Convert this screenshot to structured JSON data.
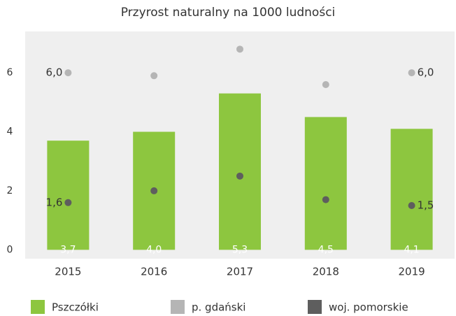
{
  "chart_data": {
    "type": "bar-line",
    "title": "Przyrost naturalny na 1000 ludności",
    "categories": [
      "2015",
      "2016",
      "2017",
      "2018",
      "2019"
    ],
    "series": [
      {
        "name": "Pszczółki",
        "type": "bar",
        "color": "#8dc63f",
        "values": [
          3.7,
          4.0,
          5.3,
          4.5,
          4.1
        ],
        "value_labels": [
          "3,7",
          "4,0",
          "5,3",
          "4,5",
          "4,1"
        ]
      },
      {
        "name": "p. gdański",
        "type": "line",
        "color": "#b5b5b5",
        "values": [
          6.0,
          5.9,
          6.8,
          5.6,
          6.0
        ],
        "value_labels": [
          "6,0",
          null,
          null,
          null,
          "6,0"
        ]
      },
      {
        "name": "woj. pomorskie",
        "type": "line",
        "color": "#5e5e5e",
        "values": [
          1.6,
          2.0,
          2.5,
          1.7,
          1.5
        ],
        "value_labels": [
          "1,6",
          null,
          null,
          null,
          "1,5"
        ]
      }
    ],
    "ylim": [
      -0.3,
      7.4
    ],
    "yticks": [
      0,
      2,
      4,
      6
    ],
    "legend": "bottom"
  }
}
